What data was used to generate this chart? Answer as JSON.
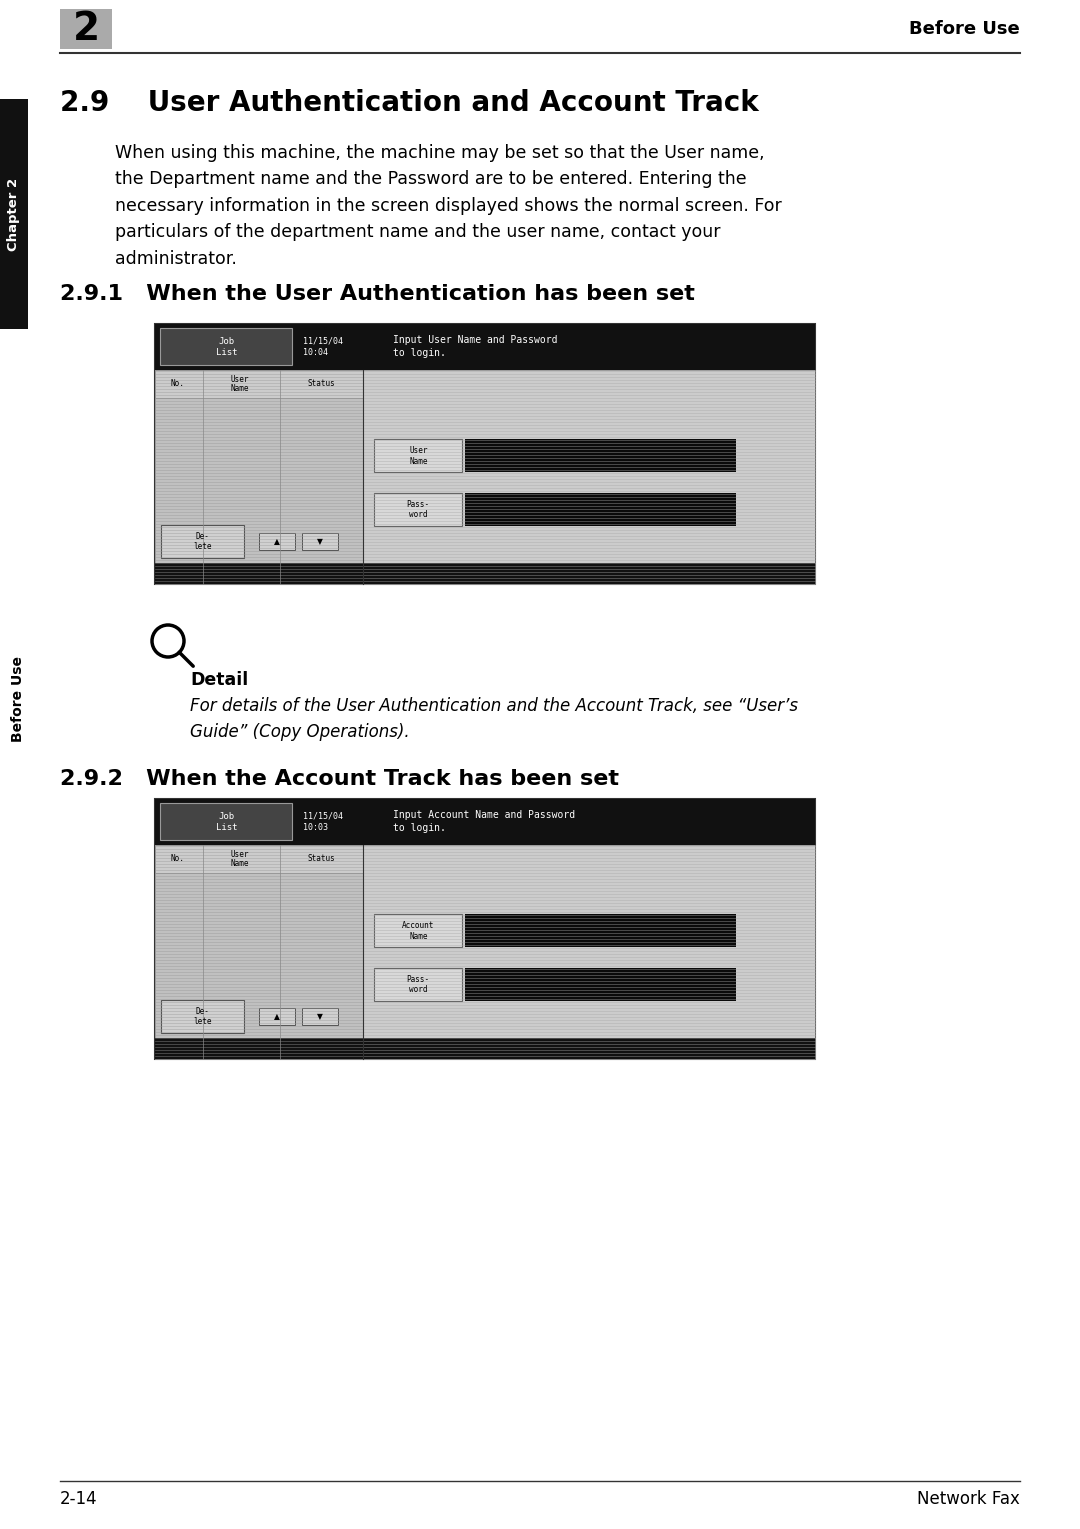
{
  "page_bg": "#ffffff",
  "page_number": "2-14",
  "page_header_right": "Before Use",
  "chapter_label": "Chapter 2",
  "before_use_label": "Before Use",
  "section_title": "2.9    User Authentication and Account Track",
  "body_text": "When using this machine, the machine may be set so that the User name,\nthe Department name and the Password are to be entered. Entering the\nnecessary information in the screen displayed shows the normal screen. For\nparticulars of the department name and the user name, contact your\nadministrator.",
  "subsection1_title": "2.9.1   When the User Authentication has been set",
  "subsection2_title": "2.9.2   When the Account Track has been set",
  "detail_label": "Detail",
  "detail_text": "For details of the User Authentication and the Account Track, see “User’s\nGuide” (Copy Operations).",
  "screen1_header_left": "Job\nList",
  "screen1_header_date": "11/15/04\n10:04",
  "screen1_header_text": "Input User Name and Password\nto login.",
  "screen1_col1": "No.",
  "screen1_col2": "User\nName",
  "screen1_col3": "Status",
  "screen1_btn_label": "De-\nlete",
  "screen1_field1": "User\nName",
  "screen1_field2": "Pass-\nword",
  "screen2_header_left": "Job\nList",
  "screen2_header_date": "11/15/04\n10:03",
  "screen2_header_text": "Input Account Name and Password\nto login.",
  "screen2_col1": "No.",
  "screen2_col2": "User\nName",
  "screen2_col3": "Status",
  "screen2_btn_label": "De-\nlete",
  "screen2_field1": "Account\nName",
  "screen2_field2": "Pass-\nword"
}
